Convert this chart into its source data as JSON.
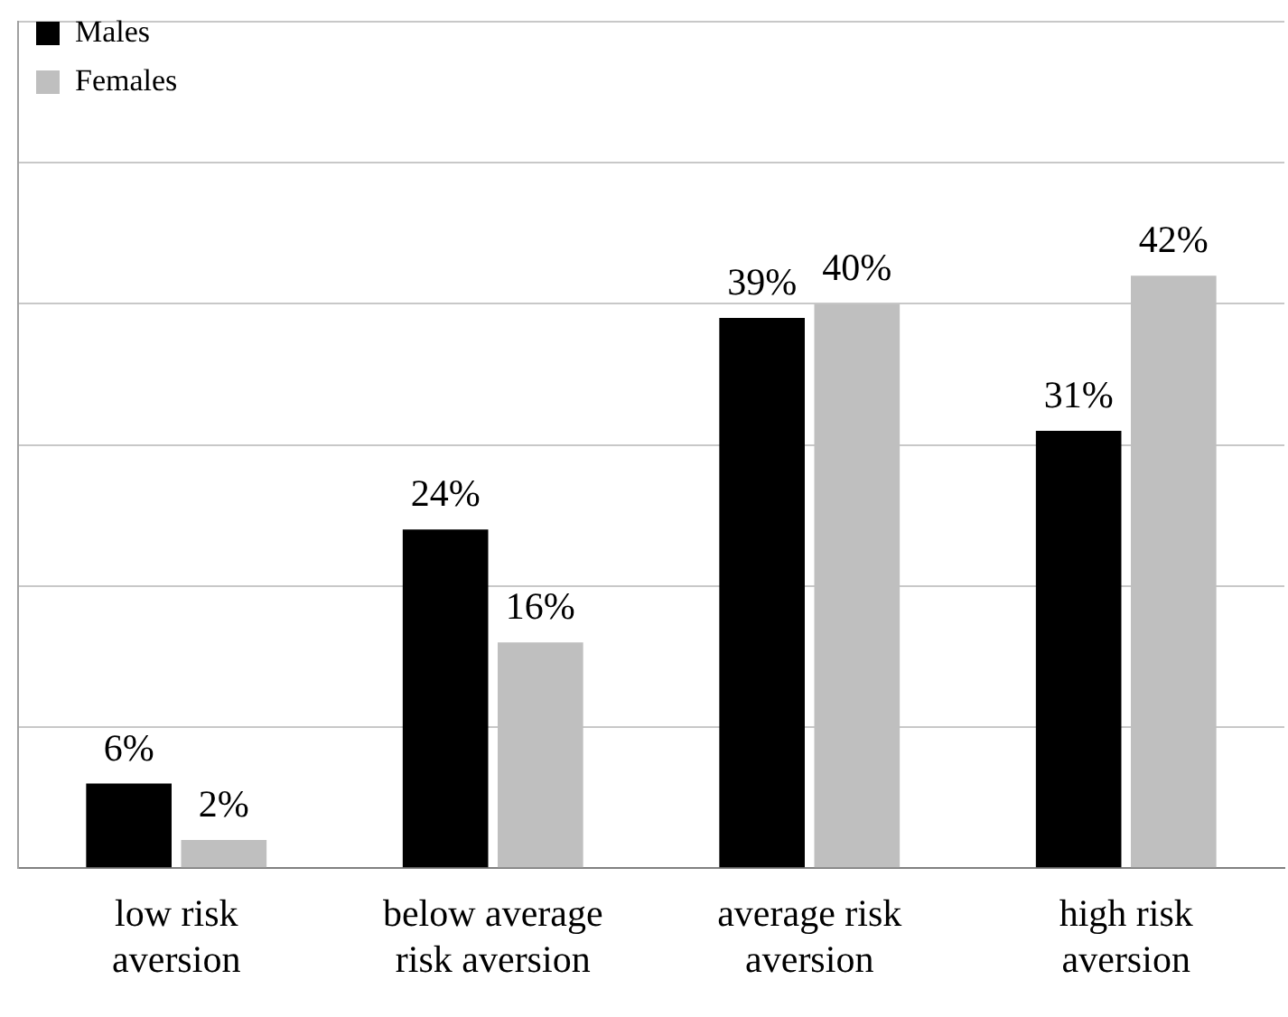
{
  "chart_data": {
    "type": "bar",
    "categories": [
      "low risk aversion",
      "below average risk aversion",
      "average risk aversion",
      "high risk aversion"
    ],
    "series": [
      {
        "name": "Males",
        "color": "#000000",
        "values": [
          6,
          24,
          39,
          31
        ],
        "value_labels": [
          "6%",
          "24%",
          "39%",
          "31%"
        ]
      },
      {
        "name": "Females",
        "color": "#bfbfbf",
        "values": [
          2,
          16,
          40,
          42
        ],
        "value_labels": [
          "2%",
          "16%",
          "40%",
          "42%"
        ]
      }
    ],
    "ylim": [
      0,
      60
    ],
    "yticks": [
      {
        "value": 0,
        "label": null
      },
      {
        "value": 10,
        "label": null
      },
      {
        "value": 20,
        "label": null
      },
      {
        "value": 30,
        "label": null
      },
      {
        "value": 40,
        "label": null
      },
      {
        "value": 50,
        "label": null
      },
      {
        "value": 60,
        "label": null
      }
    ],
    "grid": "y",
    "legend": "top left",
    "tick_labels": "x"
  }
}
